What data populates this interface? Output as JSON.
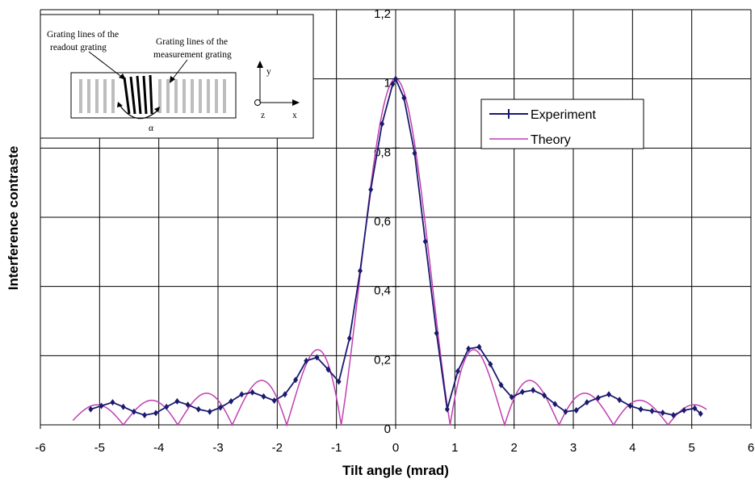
{
  "chart_data": {
    "type": "line",
    "title": "",
    "xlabel": "Tilt angle (mrad)",
    "ylabel": "Interference contraste",
    "xlim": [
      -6,
      6
    ],
    "ylim": [
      0,
      1.2
    ],
    "x_ticks": [
      "-6",
      "-5",
      "-4",
      "-3",
      "-2",
      "-1",
      "0",
      "1",
      "2",
      "3",
      "4",
      "5",
      "6"
    ],
    "y_ticks": [
      "0",
      "0,2",
      "0,4",
      "0,6",
      "0,8",
      "1",
      "1,2"
    ],
    "grid": true,
    "legend_position": "top-right",
    "series": [
      {
        "name": "Experiment",
        "color": "#1a1a6e",
        "x": [
          -5.15,
          -4.97,
          -4.78,
          -4.6,
          -4.42,
          -4.24,
          -4.05,
          -3.87,
          -3.69,
          -3.51,
          -3.33,
          -3.14,
          -2.96,
          -2.78,
          -2.6,
          -2.42,
          -2.23,
          -2.05,
          -1.87,
          -1.69,
          -1.51,
          -1.33,
          -1.14,
          -0.96,
          -0.78,
          -0.6,
          -0.42,
          -0.23,
          -0.05,
          0,
          0.14,
          0.32,
          0.5,
          0.69,
          0.87,
          1.05,
          1.23,
          1.41,
          1.6,
          1.78,
          1.96,
          2.14,
          2.32,
          2.51,
          2.69,
          2.87,
          3.05,
          3.23,
          3.42,
          3.6,
          3.78,
          3.96,
          4.14,
          4.33,
          4.51,
          4.69,
          4.87,
          5.05,
          5.15
        ],
        "y": [
          0.045,
          0.055,
          0.065,
          0.052,
          0.038,
          0.028,
          0.034,
          0.052,
          0.068,
          0.058,
          0.045,
          0.038,
          0.05,
          0.068,
          0.088,
          0.094,
          0.082,
          0.07,
          0.088,
          0.13,
          0.185,
          0.195,
          0.16,
          0.125,
          0.25,
          0.445,
          0.68,
          0.87,
          0.985,
          1.0,
          0.945,
          0.785,
          0.53,
          0.265,
          0.045,
          0.155,
          0.22,
          0.225,
          0.175,
          0.115,
          0.08,
          0.095,
          0.1,
          0.085,
          0.06,
          0.038,
          0.042,
          0.065,
          0.078,
          0.088,
          0.072,
          0.055,
          0.045,
          0.04,
          0.035,
          0.028,
          0.042,
          0.048,
          0.032
        ]
      },
      {
        "name": "Theory",
        "color": "#c040b0"
      }
    ]
  },
  "legend": {
    "experiment_label": "Experiment",
    "theory_label": "Theory"
  },
  "inset": {
    "readout_label_line1": "Grating lines of the",
    "readout_label_line2": "readout grating",
    "measurement_label_line1": "Grating lines of the",
    "measurement_label_line2": "measurement grating",
    "angle_symbol": "α",
    "axis_x": "x",
    "axis_y": "y",
    "axis_z": "z"
  }
}
